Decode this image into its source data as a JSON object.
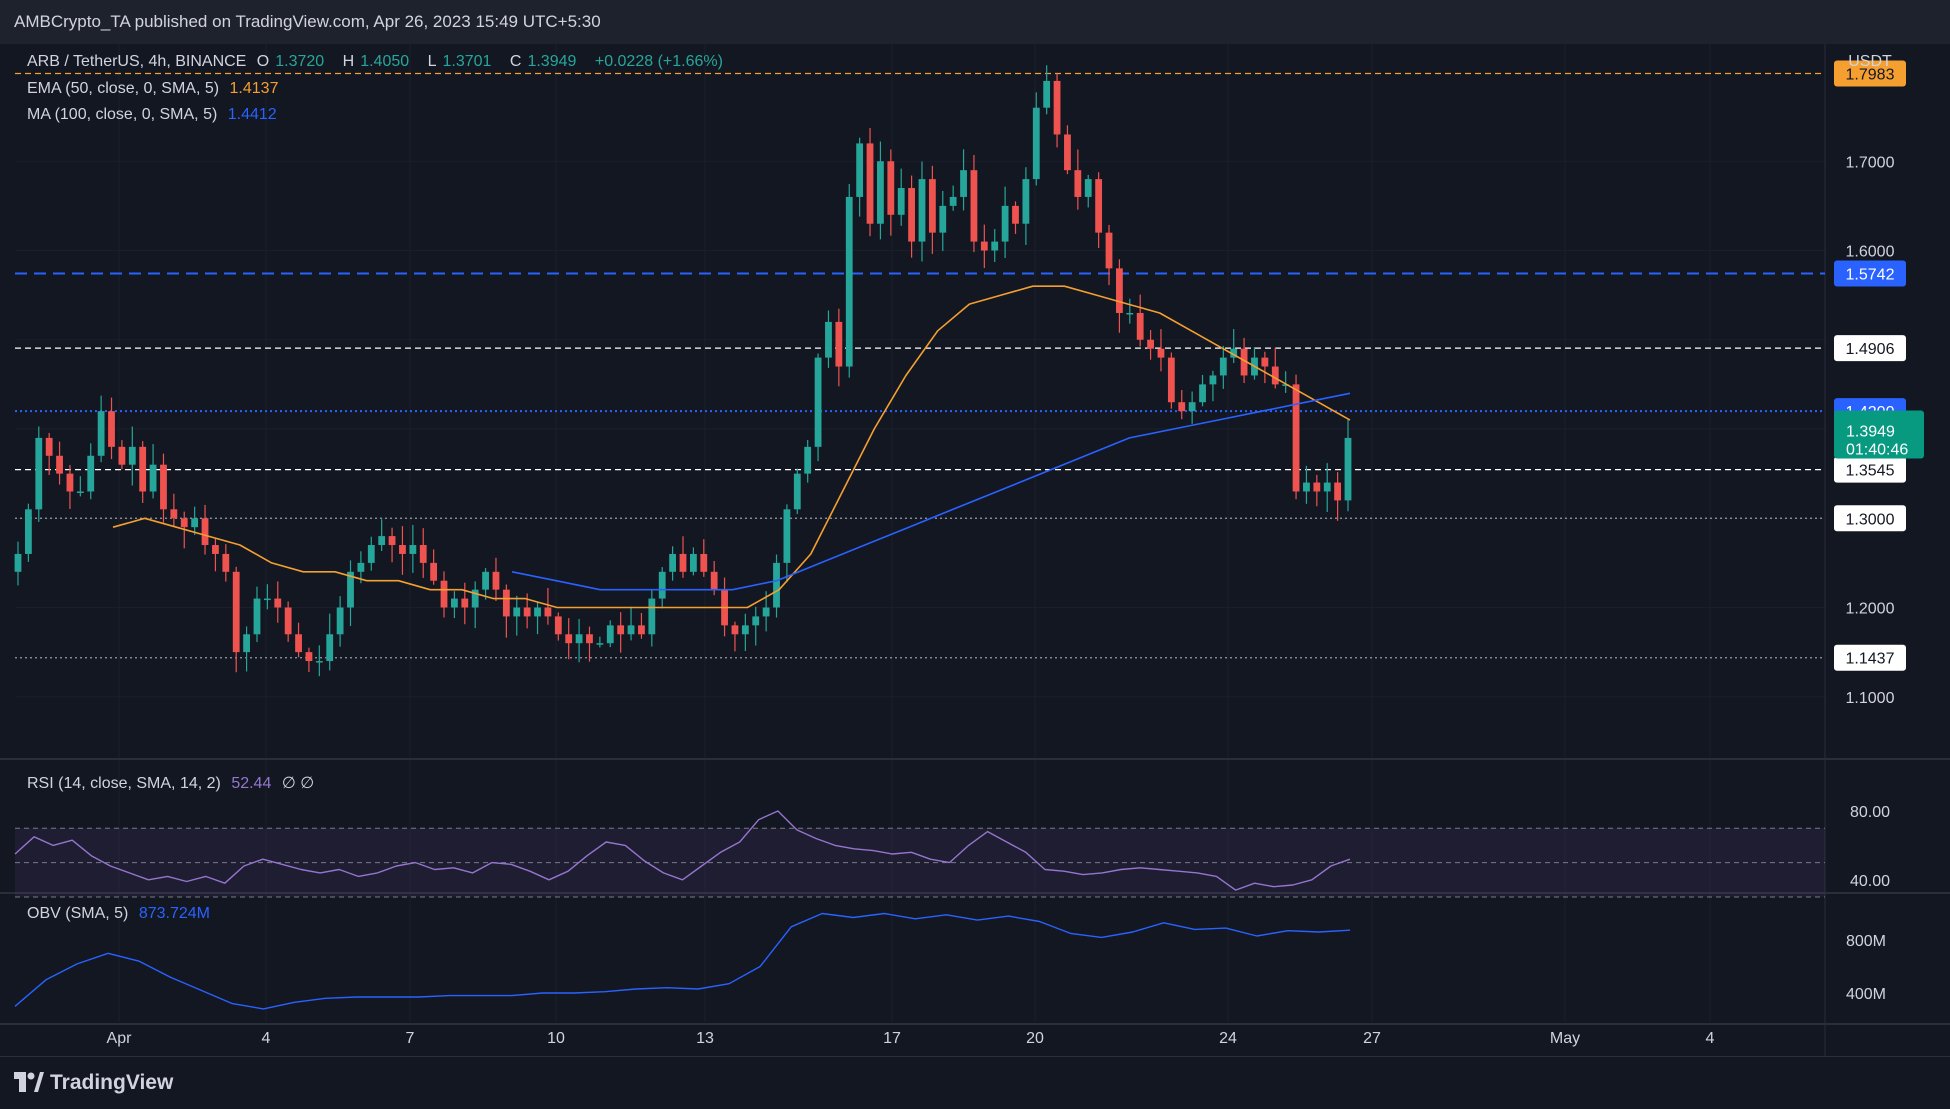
{
  "header": {
    "publisher": "AMBCrypto_TA published on TradingView.com, Apr 26, 2023 15:49 UTC+5:30"
  },
  "legend": {
    "symbol": "ARB / TetherUS, 4h, BINANCE",
    "o_label": "O",
    "o_value": "1.3720",
    "h_label": "H",
    "h_value": "1.4050",
    "l_label": "L",
    "l_value": "1.3701",
    "c_label": "C",
    "c_value": "1.3949",
    "change": "+0.0228 (+1.66%)",
    "ema_label": "EMA (50, close, 0, SMA, 5)",
    "ema_value": "1.4137",
    "ma_label": "MA (100, close, 0, SMA, 5)",
    "ma_value": "1.4412",
    "rsi_label": "RSI (14, close, SMA, 14, 2)",
    "rsi_value": "52.44",
    "rsi_extra": "∅ ∅",
    "obv_label": "OBV (SMA, 5)",
    "obv_value": "873.724M"
  },
  "footer": {
    "brand": "TradingView"
  },
  "colors": {
    "background": "#131722",
    "up": "#26a69a",
    "down": "#ef5350",
    "ema": "#f59f31",
    "ma": "#2962ff",
    "rsi": "#9575cd",
    "obv": "#2962ff",
    "grid": "#1e222d",
    "text": "#d1d4dc"
  },
  "chart_data": [
    {
      "type": "candlestick",
      "title": "ARB / TetherUS, 4h, BINANCE",
      "ylabel": "USDT",
      "ylim": [
        1.05,
        1.82
      ],
      "x_tick_labels": [
        "Apr",
        "4",
        "7",
        "10",
        "13",
        "17",
        "20",
        "24",
        "27",
        "May",
        "4"
      ],
      "y_tick_labels": [
        "1.1000",
        "1.2000",
        "1.6000",
        "1.7000"
      ],
      "candle_count": 129,
      "closes": [
        1.26,
        1.31,
        1.39,
        1.37,
        1.35,
        1.33,
        1.33,
        1.37,
        1.42,
        1.38,
        1.36,
        1.38,
        1.33,
        1.36,
        1.31,
        1.3,
        1.29,
        1.3,
        1.27,
        1.26,
        1.24,
        1.15,
        1.17,
        1.21,
        1.21,
        1.2,
        1.17,
        1.15,
        1.14,
        1.14,
        1.17,
        1.2,
        1.24,
        1.25,
        1.27,
        1.28,
        1.27,
        1.26,
        1.27,
        1.25,
        1.23,
        1.2,
        1.21,
        1.2,
        1.22,
        1.24,
        1.22,
        1.19,
        1.2,
        1.19,
        1.2,
        1.19,
        1.17,
        1.16,
        1.17,
        1.16,
        1.16,
        1.18,
        1.17,
        1.18,
        1.17,
        1.21,
        1.24,
        1.26,
        1.24,
        1.26,
        1.24,
        1.22,
        1.18,
        1.17,
        1.18,
        1.19,
        1.2,
        1.25,
        1.31,
        1.35,
        1.38,
        1.48,
        1.52,
        1.47,
        1.66,
        1.72,
        1.63,
        1.7,
        1.64,
        1.67,
        1.61,
        1.68,
        1.62,
        1.65,
        1.66,
        1.69,
        1.61,
        1.6,
        1.61,
        1.65,
        1.63,
        1.68,
        1.76,
        1.79,
        1.73,
        1.69,
        1.66,
        1.68,
        1.62,
        1.58,
        1.53,
        1.53,
        1.5,
        1.49,
        1.48,
        1.43,
        1.42,
        1.43,
        1.45,
        1.46,
        1.48,
        1.49,
        1.46,
        1.48,
        1.47,
        1.45,
        1.45,
        1.33,
        1.34,
        1.33,
        1.34,
        1.32,
        1.39
      ]
    },
    {
      "type": "line",
      "name": "EMA (50, close, 0, SMA, 5)",
      "last_value": 1.4137,
      "values": [
        1.29,
        1.3,
        1.29,
        1.28,
        1.27,
        1.25,
        1.24,
        1.24,
        1.23,
        1.23,
        1.22,
        1.22,
        1.21,
        1.21,
        1.2,
        1.2,
        1.2,
        1.2,
        1.2,
        1.2,
        1.2,
        1.22,
        1.26,
        1.33,
        1.4,
        1.46,
        1.51,
        1.54,
        1.55,
        1.56,
        1.56,
        1.55,
        1.54,
        1.53,
        1.51,
        1.49,
        1.47,
        1.45,
        1.43,
        1.41
      ]
    },
    {
      "type": "line",
      "name": "MA (100, close, 0, SMA, 5)",
      "last_value": 1.4412,
      "values": [
        1.24,
        1.23,
        1.22,
        1.22,
        1.22,
        1.22,
        1.23,
        1.25,
        1.27,
        1.29,
        1.31,
        1.33,
        1.35,
        1.37,
        1.39,
        1.4,
        1.41,
        1.42,
        1.43,
        1.44
      ]
    },
    {
      "type": "line",
      "name": "RSI (14, close, SMA, 14, 2)",
      "last_value": 52.44,
      "levels": [
        70,
        50,
        30
      ],
      "y_tick_labels": [
        "80.00",
        "40.00"
      ],
      "values": [
        55,
        65,
        60,
        63,
        54,
        48,
        44,
        40,
        42,
        39,
        42,
        38,
        48,
        52,
        49,
        46,
        44,
        46,
        42,
        44,
        48,
        50,
        46,
        47,
        44,
        50,
        49,
        45,
        40,
        45,
        54,
        62,
        60,
        51,
        44,
        40,
        48,
        56,
        62,
        75,
        80,
        69,
        64,
        60,
        58,
        57,
        55,
        56,
        52,
        50,
        60,
        68,
        62,
        56,
        46,
        45,
        43,
        44,
        46,
        47,
        46,
        45,
        44,
        42,
        34,
        38,
        36,
        37,
        40,
        48,
        52
      ]
    },
    {
      "type": "line",
      "name": "OBV (SMA, 5)",
      "last_value_text": "873.724M",
      "y_tick_labels": [
        "800M",
        "400M"
      ],
      "values": [
        300,
        500,
        620,
        700,
        640,
        520,
        420,
        320,
        280,
        330,
        360,
        370,
        370,
        370,
        380,
        380,
        380,
        400,
        400,
        410,
        430,
        440,
        430,
        470,
        600,
        900,
        1000,
        970,
        1000,
        960,
        990,
        950,
        980,
        940,
        850,
        820,
        860,
        930,
        880,
        890,
        830,
        870,
        860,
        874
      ]
    }
  ],
  "price_levels": [
    {
      "label": "1.7983",
      "value": 1.7983,
      "color": "#f59f31",
      "style": "dashed"
    },
    {
      "label": "1.5742",
      "value": 1.5742,
      "color": "#2962ff",
      "style": "dashed"
    },
    {
      "label": "1.4906",
      "value": 1.4906,
      "color": "#ffffff",
      "style": "dashed"
    },
    {
      "label": "1.4200",
      "value": 1.42,
      "color": "#2962ff",
      "style": "dotted"
    },
    {
      "label": "1.3545",
      "value": 1.3545,
      "color": "#ffffff",
      "style": "dashed"
    },
    {
      "label": "1.3000",
      "value": 1.3,
      "color": "#d1d4dc",
      "style": "dotted"
    },
    {
      "label": "1.1437",
      "value": 1.1437,
      "color": "#d1d4dc",
      "style": "dotted"
    }
  ],
  "current_price": {
    "label": "1.3949",
    "countdown": "01:40:46",
    "value": 1.3949,
    "color": "#089981"
  }
}
